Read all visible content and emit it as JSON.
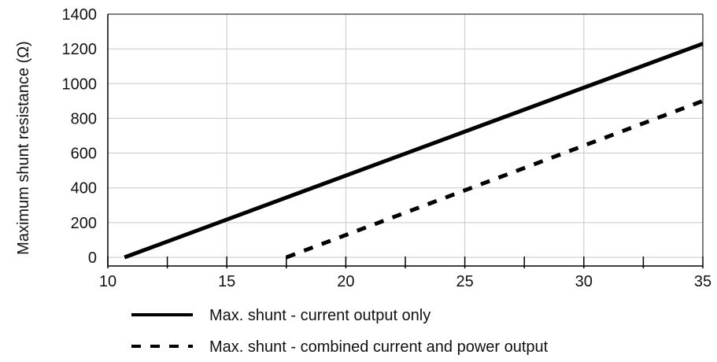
{
  "chart_data": {
    "type": "line",
    "title": "",
    "xlabel": "",
    "ylabel": "Maximum shunt resistance (Ω)",
    "xlim": [
      10,
      35
    ],
    "ylim": [
      -50,
      1400
    ],
    "x_ticks": [
      10,
      15,
      20,
      25,
      30,
      35
    ],
    "x_tick_labels": [
      "10",
      "15",
      "20",
      "25",
      "30",
      "35"
    ],
    "x_minor_ticks": [
      12.5,
      17.5,
      22.5,
      27.5,
      32.5
    ],
    "y_ticks": [
      0,
      200,
      400,
      600,
      800,
      1000,
      1200,
      1400
    ],
    "y_tick_labels": [
      "0",
      "200",
      "400",
      "600",
      "800",
      "1000",
      "1200",
      "1400"
    ],
    "grid": true,
    "legend_position": "bottom",
    "series": [
      {
        "name": "Max. shunt - current output only",
        "style": "solid",
        "color": "#000000",
        "x": [
          10.7,
          35
        ],
        "y": [
          0,
          1230
        ]
      },
      {
        "name": "Max. shunt - combined current and power output",
        "style": "dashed",
        "color": "#000000",
        "x": [
          17.5,
          35
        ],
        "y": [
          0,
          900
        ]
      }
    ]
  }
}
